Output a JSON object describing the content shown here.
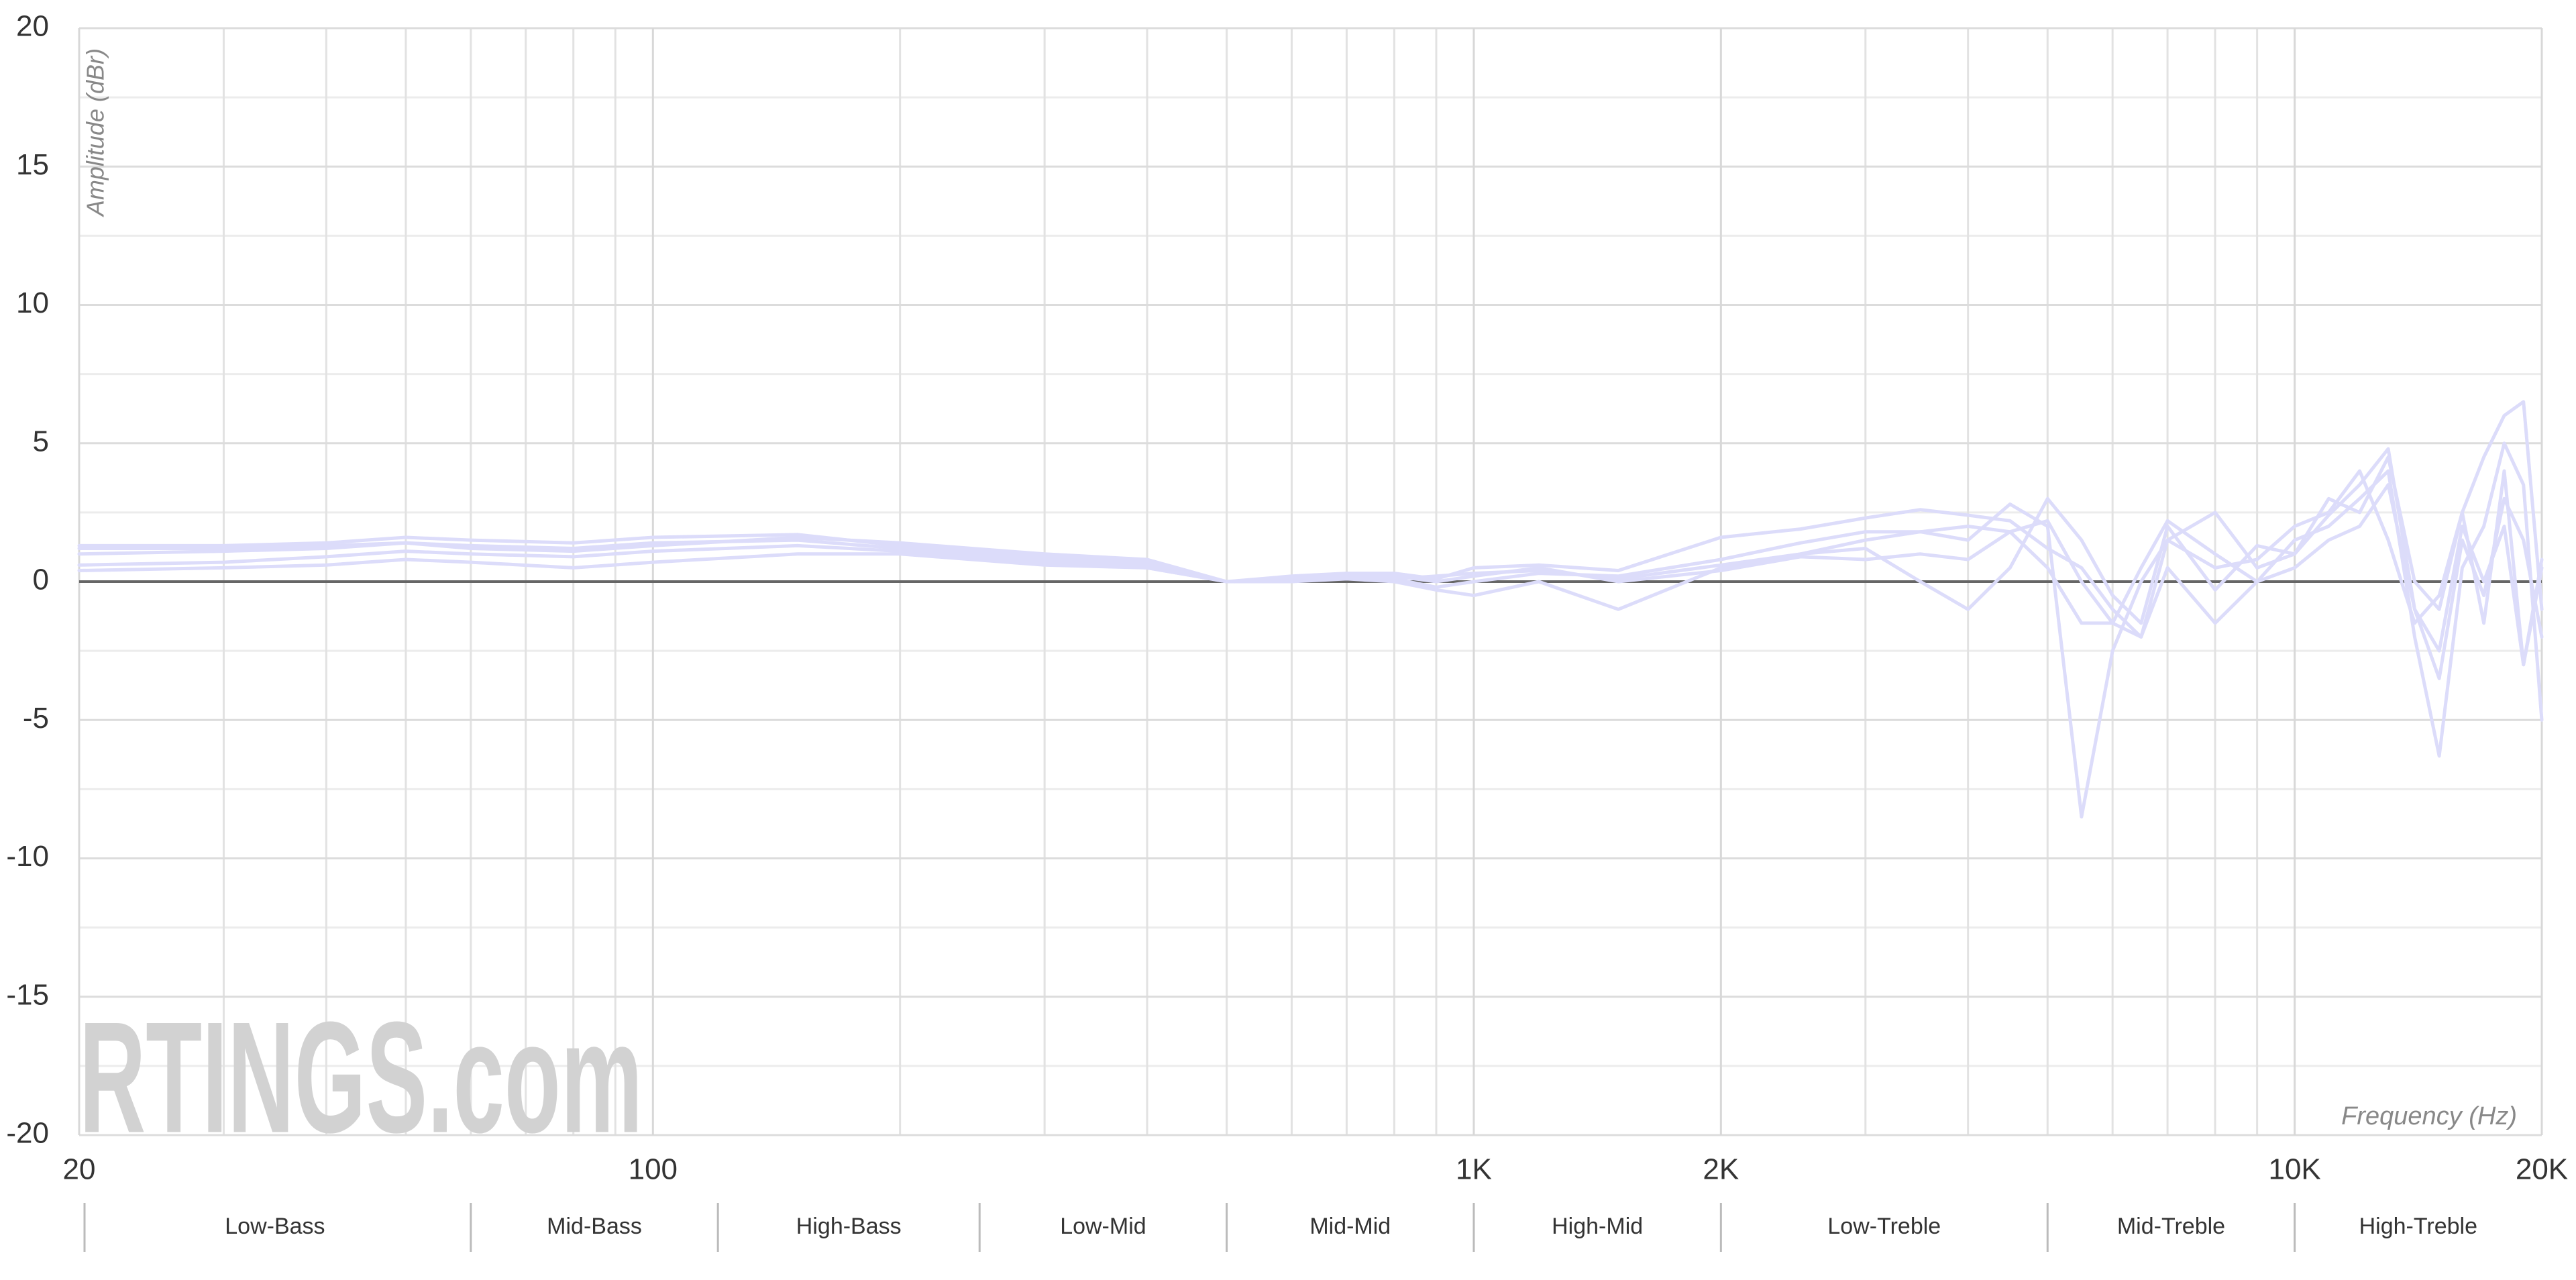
{
  "chart_data": {
    "type": "line",
    "y_label": "Amplitude (dBr)",
    "x_label": "Frequency (Hz)",
    "watermark": "RTINGS.com",
    "x_log": true,
    "grid": true,
    "zero_line": true,
    "xlim": [
      20,
      20000
    ],
    "ylim": [
      -20,
      20
    ],
    "xticks": [
      20,
      100,
      {
        "value": 1000,
        "label": "1K"
      },
      {
        "value": 2000,
        "label": "2K"
      },
      {
        "value": 10000,
        "label": "10K"
      },
      {
        "value": 20000,
        "label": "20K"
      }
    ],
    "xminor_grid": [
      30,
      40,
      50,
      60,
      70,
      80,
      90,
      200,
      300,
      400,
      500,
      600,
      700,
      800,
      900,
      3000,
      4000,
      5000,
      6000,
      7000,
      8000,
      9000
    ],
    "yticks": [
      -20,
      -15,
      -10,
      -5,
      0,
      5,
      10,
      15,
      20
    ],
    "yminor_grid": [
      -17.5,
      -12.5,
      -7.5,
      -2.5,
      2.5,
      7.5,
      12.5,
      17.5
    ],
    "bands": [
      {
        "label": "Low-Bass",
        "start": 20,
        "end": 60
      },
      {
        "label": "Mid-Bass",
        "start": 60,
        "end": 120
      },
      {
        "label": "High-Bass",
        "start": 120,
        "end": 250
      },
      {
        "label": "Low-Mid",
        "start": 250,
        "end": 500
      },
      {
        "label": "Mid-Mid",
        "start": 500,
        "end": 1000
      },
      {
        "label": "High-Mid",
        "start": 1000,
        "end": 2000
      },
      {
        "label": "Low-Treble",
        "start": 2000,
        "end": 5000
      },
      {
        "label": "Mid-Treble",
        "start": 5000,
        "end": 10000
      },
      {
        "label": "High-Treble",
        "start": 10000,
        "end": 20000
      }
    ],
    "x": [
      20,
      30,
      40,
      50,
      60,
      80,
      100,
      150,
      200,
      300,
      400,
      500,
      600,
      700,
      800,
      900,
      1000,
      1200,
      1500,
      2000,
      2500,
      3000,
      3500,
      4000,
      4500,
      5000,
      5500,
      6000,
      6500,
      7000,
      8000,
      9000,
      10000,
      11000,
      12000,
      13000,
      14000,
      15000,
      16000,
      17000,
      18000,
      19000,
      20000
    ],
    "series": [
      {
        "color": "#dcdcfa",
        "values": [
          1.3,
          1.3,
          1.4,
          1.6,
          1.5,
          1.4,
          1.6,
          1.7,
          1.3,
          0.9,
          0.7,
          0,
          0.1,
          0.3,
          0.3,
          0.1,
          0.5,
          0.6,
          0.4,
          1.6,
          1.9,
          2.3,
          2.6,
          2.4,
          2.2,
          1.2,
          0.5,
          -1.0,
          -2.0,
          1.5,
          0.5,
          0.8,
          2.0,
          2.5,
          4.0,
          1.5,
          -1.5,
          -0.5,
          2.5,
          4.5,
          6.0,
          6.5,
          -1.0
        ]
      },
      {
        "color": "#dcdcfa",
        "values": [
          1.0,
          1.1,
          1.2,
          1.4,
          1.3,
          1.2,
          1.4,
          1.5,
          1.2,
          0.8,
          0.6,
          0,
          0.1,
          0.2,
          0.1,
          -0.2,
          0,
          0.3,
          0.2,
          0.8,
          1.4,
          1.8,
          1.8,
          1.5,
          2.8,
          2.0,
          -8.5,
          -2.5,
          0,
          1.5,
          2.5,
          0.5,
          1.0,
          2.4,
          3.5,
          4.8,
          -1.0,
          -3.5,
          1.5,
          -0.5,
          3.0,
          1.5,
          -2.0
        ]
      },
      {
        "color": "#dcdcfa",
        "values": [
          0.6,
          0.7,
          0.9,
          1.1,
          1.0,
          0.9,
          1.1,
          1.3,
          1.1,
          0.7,
          0.5,
          0,
          0,
          0.1,
          0,
          -0.3,
          -0.5,
          0,
          -1.0,
          0.5,
          1.0,
          1.5,
          1.8,
          2.0,
          1.8,
          0.5,
          -1.5,
          -1.5,
          0.5,
          2.2,
          1.0,
          0,
          1.5,
          2.0,
          3.0,
          4.0,
          -2.0,
          -6.3,
          0.5,
          2.0,
          5.0,
          3.5,
          -5.0
        ]
      },
      {
        "color": "#dcdcfa",
        "values": [
          0.4,
          0.5,
          0.6,
          0.8,
          0.7,
          0.5,
          0.7,
          1.0,
          1.0,
          0.6,
          0.5,
          0,
          0.1,
          0.2,
          0.2,
          0,
          0.2,
          0.5,
          0,
          0.4,
          0.9,
          0.8,
          1.0,
          0.8,
          1.8,
          2.2,
          0,
          -1.5,
          -2.0,
          0.5,
          -1.5,
          0,
          0.5,
          1.5,
          2.0,
          3.5,
          -1.0,
          -2.5,
          2.0,
          0,
          2.0,
          -3.0,
          0.5
        ]
      },
      {
        "color": "#dcdcfa",
        "values": [
          1.2,
          1.2,
          1.3,
          1.4,
          1.2,
          1.1,
          1.3,
          1.6,
          1.4,
          1.0,
          0.8,
          0,
          0.2,
          0.3,
          0.1,
          0.2,
          0.3,
          0.4,
          0.1,
          0.6,
          1.0,
          1.2,
          0,
          -1.0,
          0.5,
          3.0,
          1.5,
          -0.5,
          -1.5,
          2.0,
          -0.3,
          1.3,
          1.0,
          3.0,
          2.5,
          4.5,
          0,
          -1.0,
          2.5,
          -1.5,
          4.0,
          -3.0,
          0.8
        ]
      }
    ]
  }
}
